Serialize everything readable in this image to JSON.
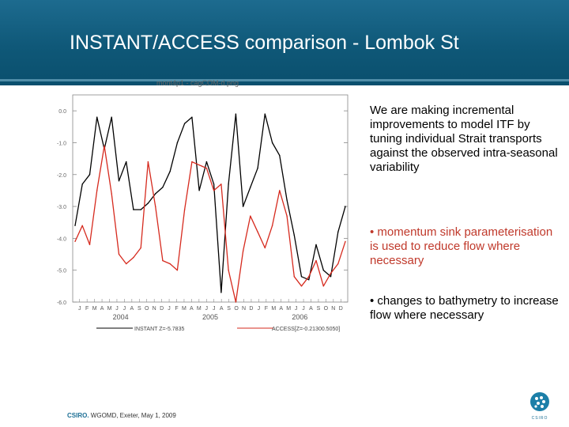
{
  "slide": {
    "title": "INSTANT/ACCESS comparison - Lombok St",
    "paragraphs": [
      "We are making incremental improvements to model ITF by tuning individual Strait transports against the observed intra-seasonal variability",
      "• momentum sink parameterisation is used to reduce flow where necessary",
      "• changes to bathymetry to increase flow where necessary"
    ],
    "footer_brand": "CSIRO.",
    "footer_text": "WGOMD, Exeter, May 1, 2009",
    "logo_text": "CSIRO"
  },
  "colors": {
    "header": "#0f5878",
    "instant": "#000000",
    "access": "#d62a1e",
    "highlight_text": "#c0392b"
  },
  "chart_data": {
    "type": "line",
    "title": "mont4p1 - cagCOM-d.png",
    "ylim": [
      -6.0,
      0.5
    ],
    "yticks": [
      0.0,
      -1.0,
      -2.0,
      -3.0,
      -4.0,
      -5.0,
      -6.0
    ],
    "ytick_labels": [
      "0.0",
      "-1.0",
      "-2.0",
      "-3.0",
      "-4.0",
      "-5.0",
      "-6.0"
    ],
    "month_labels": [
      "J",
      "F",
      "M",
      "A",
      "M",
      "J",
      "J",
      "A",
      "S",
      "O",
      "N",
      "D",
      "J",
      "F",
      "M",
      "A",
      "M",
      "J",
      "J",
      "A",
      "S",
      "O",
      "N",
      "D",
      "J",
      "F",
      "M",
      "A",
      "M",
      "J",
      "J",
      "A",
      "S",
      "O",
      "N",
      "D"
    ],
    "year_labels": [
      "2004",
      "2005",
      "2006"
    ],
    "series": [
      {
        "name": "INSTANT",
        "legend": "INSTANT  Z=-5.7835",
        "values": [
          -3.6,
          -2.3,
          -2.0,
          -0.2,
          -1.2,
          -0.2,
          -2.2,
          -1.6,
          -3.1,
          -3.1,
          -2.9,
          -2.6,
          -2.4,
          -1.9,
          -1.0,
          -0.4,
          -0.2,
          -2.5,
          -1.6,
          -2.3,
          -5.7,
          -2.3,
          -0.1,
          -3.0,
          -2.4,
          -1.8,
          -0.1,
          -1.0,
          -1.4,
          -2.8,
          -3.9,
          -5.2,
          -5.3,
          -4.2,
          -5.0,
          -5.2,
          -3.8,
          -3.0
        ]
      },
      {
        "name": "ACCESS",
        "legend": "ACCESS[Z=-0.21300.5050]",
        "values": [
          -4.1,
          -3.6,
          -4.2,
          -2.5,
          -1.1,
          -2.6,
          -4.5,
          -4.8,
          -4.6,
          -4.3,
          -1.6,
          -3.0,
          -4.7,
          -4.8,
          -5.0,
          -3.1,
          -1.6,
          -1.7,
          -1.8,
          -2.5,
          -2.3,
          -5.0,
          -6.0,
          -4.4,
          -3.3,
          -3.8,
          -4.3,
          -3.6,
          -2.5,
          -3.3,
          -5.2,
          -5.5,
          -5.2,
          -4.7,
          -5.5,
          -5.1,
          -4.8,
          -4.1
        ]
      }
    ]
  }
}
